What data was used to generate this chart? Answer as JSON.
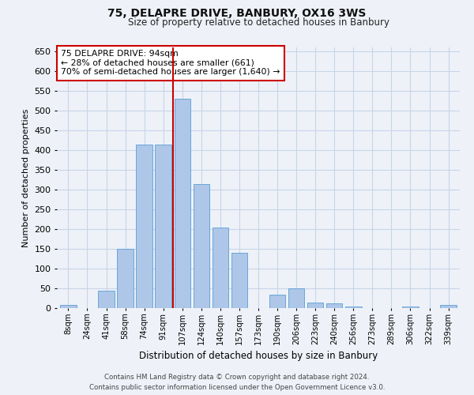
{
  "title": "75, DELAPRE DRIVE, BANBURY, OX16 3WS",
  "subtitle": "Size of property relative to detached houses in Banbury",
  "xlabel": "Distribution of detached houses by size in Banbury",
  "ylabel": "Number of detached properties",
  "categories": [
    "8sqm",
    "24sqm",
    "41sqm",
    "58sqm",
    "74sqm",
    "91sqm",
    "107sqm",
    "124sqm",
    "140sqm",
    "157sqm",
    "173sqm",
    "190sqm",
    "206sqm",
    "223sqm",
    "240sqm",
    "256sqm",
    "273sqm",
    "289sqm",
    "306sqm",
    "322sqm",
    "339sqm"
  ],
  "values": [
    8,
    0,
    45,
    150,
    415,
    415,
    530,
    315,
    205,
    140,
    0,
    35,
    50,
    15,
    13,
    5,
    0,
    0,
    5,
    0,
    8
  ],
  "bar_color": "#aec6e8",
  "bar_edgecolor": "#5a9fd4",
  "grid_color": "#c8d4e8",
  "background_color": "#eef2f8",
  "vline_x": 5.5,
  "vline_color": "#cc0000",
  "annotation_text": "75 DELAPRE DRIVE: 94sqm\n← 28% of detached houses are smaller (661)\n70% of semi-detached houses are larger (1,640) →",
  "annotation_box_color": "#ffffff",
  "annotation_box_edgecolor": "#cc0000",
  "ylim": [
    0,
    660
  ],
  "yticks": [
    0,
    50,
    100,
    150,
    200,
    250,
    300,
    350,
    400,
    450,
    500,
    550,
    600,
    650
  ],
  "footer_line1": "Contains HM Land Registry data © Crown copyright and database right 2024.",
  "footer_line2": "Contains public sector information licensed under the Open Government Licence v3.0."
}
